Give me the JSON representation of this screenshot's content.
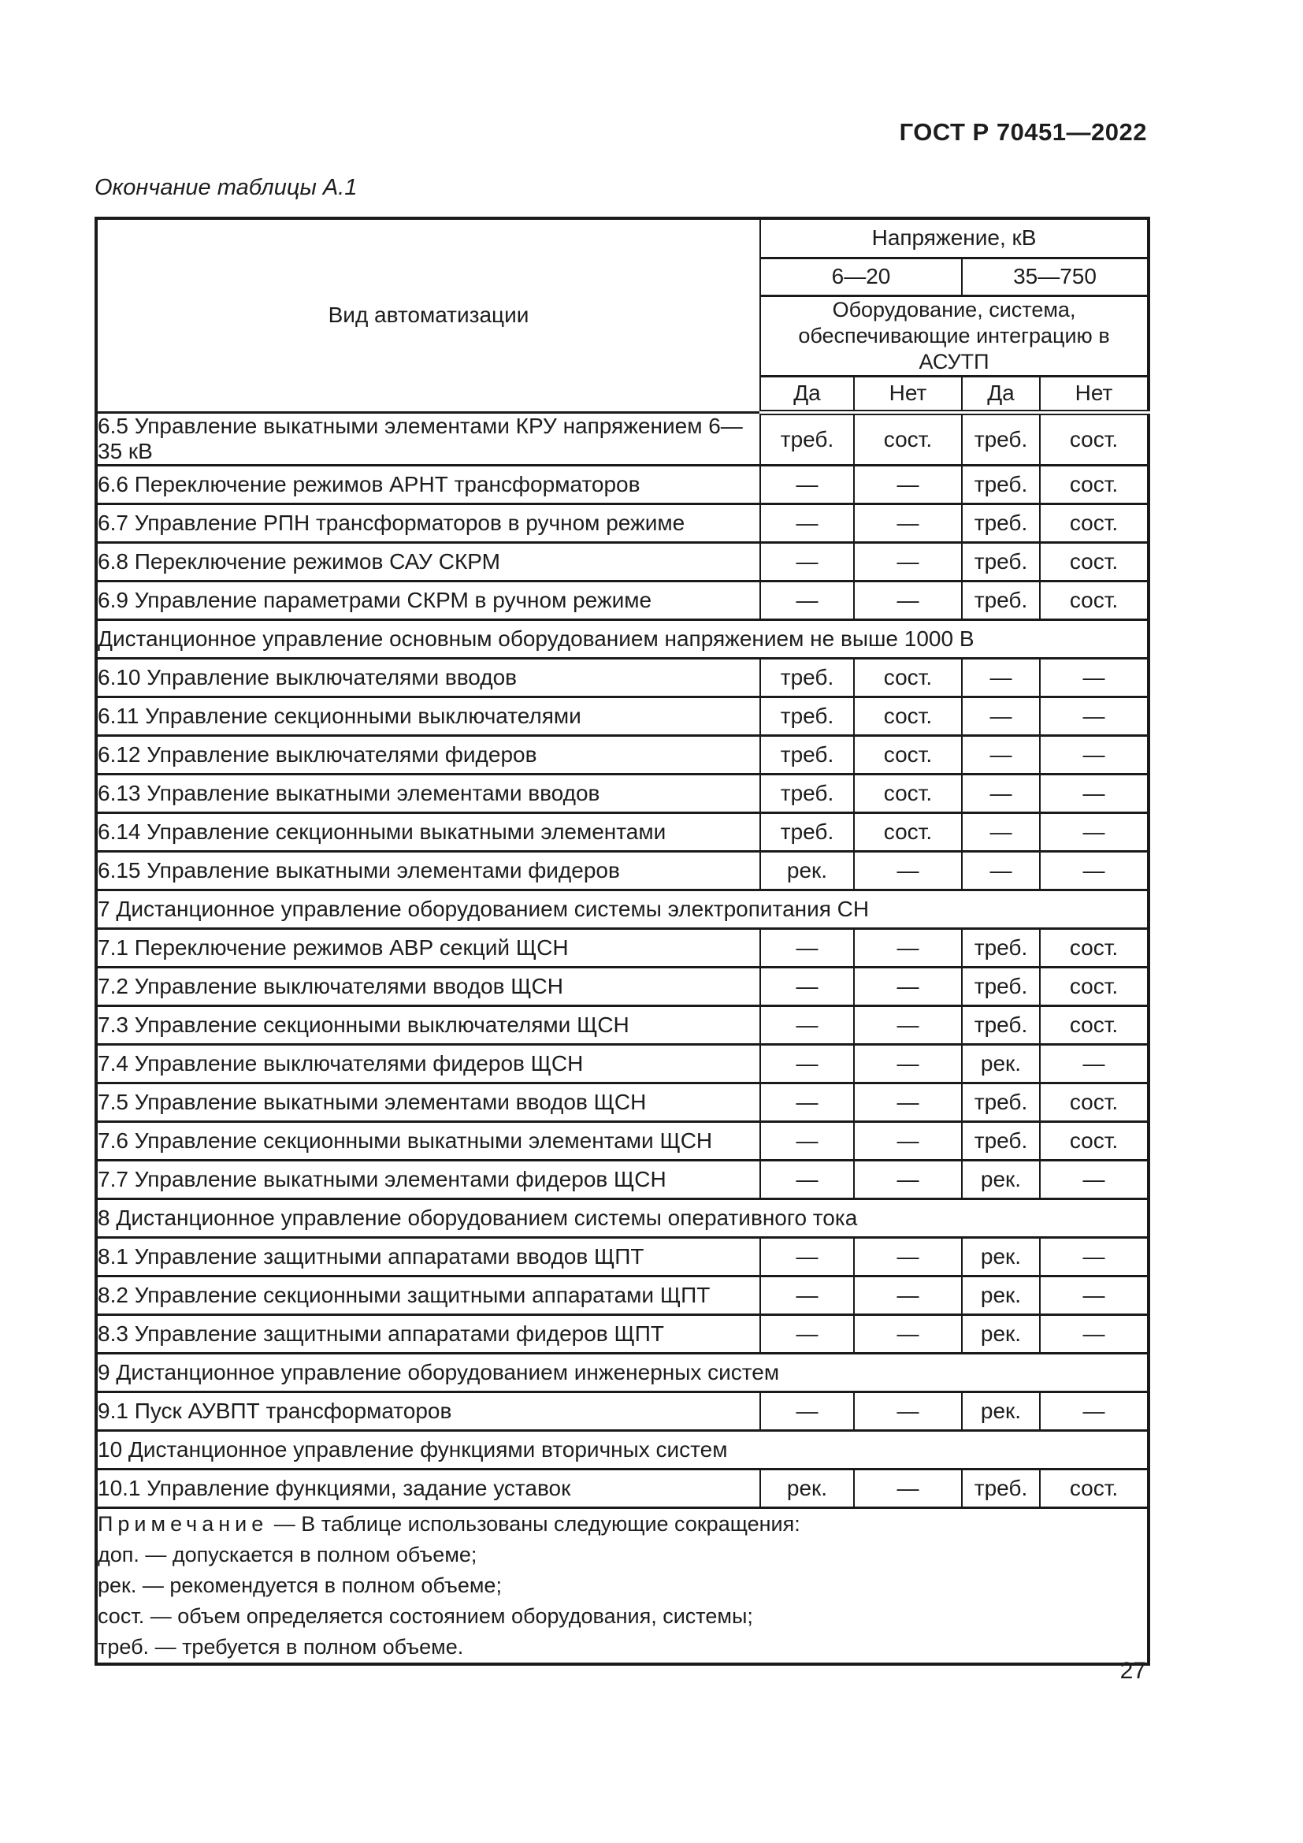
{
  "page": {
    "standard_ref": "ГОСТ Р 70451—2022",
    "caption": "Окончание таблицы А.1",
    "page_number": "27"
  },
  "table": {
    "col_header": {
      "kind": "Вид автоматизации",
      "voltage": "Напряжение, кВ",
      "range_low": "6—20",
      "range_high": "35—750",
      "integration": "Оборудование, система, обеспечивающие интеграцию в АСУТП",
      "yes": "Да",
      "no": "Нет"
    },
    "rows": [
      {
        "type": "data",
        "label": "6.5 Управление выкатными элементами КРУ напряжением 6—35 кВ",
        "values": [
          "треб.",
          "сост.",
          "треб.",
          "сост."
        ]
      },
      {
        "type": "data",
        "label": "6.6 Переключение режимов АРНТ трансформаторов",
        "values": [
          "—",
          "—",
          "треб.",
          "сост."
        ]
      },
      {
        "type": "data",
        "label": "6.7 Управление РПН трансформаторов в ручном режиме",
        "values": [
          "—",
          "—",
          "треб.",
          "сост."
        ]
      },
      {
        "type": "data",
        "label": "6.8 Переключение режимов САУ СКРМ",
        "values": [
          "—",
          "—",
          "треб.",
          "сост."
        ]
      },
      {
        "type": "data",
        "label": "6.9 Управление параметрами СКРМ в ручном режиме",
        "values": [
          "—",
          "—",
          "треб.",
          "сост."
        ]
      },
      {
        "type": "section",
        "label": "Дистанционное управление основным оборудованием напряжением не выше 1000 В"
      },
      {
        "type": "data",
        "label": "6.10 Управление выключателями вводов",
        "values": [
          "треб.",
          "сост.",
          "—",
          "—"
        ]
      },
      {
        "type": "data",
        "label": "6.11 Управление секционными выключателями",
        "values": [
          "треб.",
          "сост.",
          "—",
          "—"
        ]
      },
      {
        "type": "data",
        "label": "6.12 Управление выключателями фидеров",
        "values": [
          "треб.",
          "сост.",
          "—",
          "—"
        ]
      },
      {
        "type": "data",
        "label": "6.13 Управление выкатными элементами вводов",
        "values": [
          "треб.",
          "сост.",
          "—",
          "—"
        ]
      },
      {
        "type": "data",
        "label": "6.14 Управление секционными выкатными элементами",
        "values": [
          "треб.",
          "сост.",
          "—",
          "—"
        ]
      },
      {
        "type": "data",
        "label": "6.15 Управление выкатными элементами фидеров",
        "values": [
          "рек.",
          "—",
          "—",
          "—"
        ]
      },
      {
        "type": "section",
        "label": "7 Дистанционное управление оборудованием системы электропитания СН"
      },
      {
        "type": "data",
        "label": "7.1 Переключение режимов АВР секций ЩСН",
        "values": [
          "—",
          "—",
          "треб.",
          "сост."
        ]
      },
      {
        "type": "data",
        "label": "7.2 Управление выключателями вводов ЩСН",
        "values": [
          "—",
          "—",
          "треб.",
          "сост."
        ]
      },
      {
        "type": "data",
        "label": "7.3 Управление секционными выключателями ЩСН",
        "values": [
          "—",
          "—",
          "треб.",
          "сост."
        ]
      },
      {
        "type": "data",
        "label": "7.4 Управление выключателями фидеров ЩСН",
        "values": [
          "—",
          "—",
          "рек.",
          "—"
        ]
      },
      {
        "type": "data",
        "label": "7.5 Управление выкатными элементами вводов ЩСН",
        "values": [
          "—",
          "—",
          "треб.",
          "сост."
        ]
      },
      {
        "type": "data",
        "label": "7.6 Управление секционными выкатными элементами ЩСН",
        "values": [
          "—",
          "—",
          "треб.",
          "сост."
        ]
      },
      {
        "type": "data",
        "label": "7.7 Управление выкатными элементами фидеров ЩСН",
        "values": [
          "—",
          "—",
          "рек.",
          "—"
        ]
      },
      {
        "type": "section",
        "label": "8 Дистанционное управление оборудованием системы оперативного тока"
      },
      {
        "type": "data",
        "label": "8.1 Управление защитными аппаратами вводов ЩПТ",
        "values": [
          "—",
          "—",
          "рек.",
          "—"
        ]
      },
      {
        "type": "data",
        "label": "8.2 Управление секционными защитными аппаратами ЩПТ",
        "values": [
          "—",
          "—",
          "рек.",
          "—"
        ]
      },
      {
        "type": "data",
        "label": "8.3 Управление защитными аппаратами фидеров ЩПТ",
        "values": [
          "—",
          "—",
          "рек.",
          "—"
        ]
      },
      {
        "type": "section",
        "label": "9 Дистанционное управление оборудованием инженерных систем"
      },
      {
        "type": "data",
        "label": "9.1 Пуск АУВПТ трансформаторов",
        "values": [
          "—",
          "—",
          "рек.",
          "—"
        ]
      },
      {
        "type": "section",
        "label": "10 Дистанционное управление функциями вторичных систем"
      },
      {
        "type": "data",
        "label": "10.1 Управление функциями, задание уставок",
        "values": [
          "рек.",
          "—",
          "треб.",
          "сост."
        ]
      }
    ],
    "note": {
      "intro_spaced": "Примечание",
      "intro_rest": " — В таблице использованы следующие сокращения:",
      "lines": [
        "доп. — допускается в полном объеме;",
        "рек. — рекомендуется в полном объеме;",
        "сост. — объем определяется состоянием оборудования, системы;",
        "треб. — требуется в полном объеме."
      ]
    }
  }
}
